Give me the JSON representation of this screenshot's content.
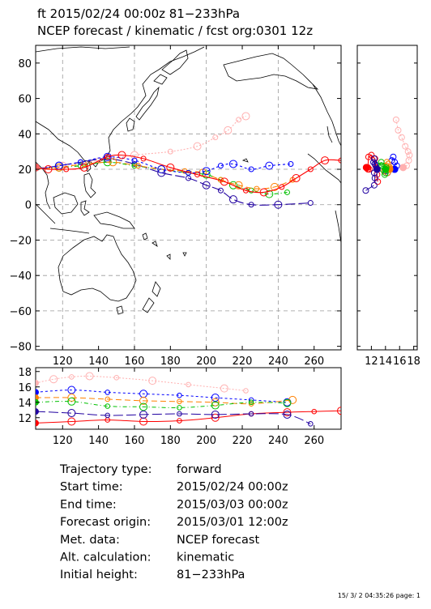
{
  "title": {
    "line1": "ft 2015/02/24 00:00z  81−233hPa",
    "line2": "NCEP forecast / kinematic / fcst org:0301 12z"
  },
  "colors": {
    "t1": "#ff0000",
    "t2": "#0000ff",
    "t3": "#ff8000",
    "t4": "#00c000",
    "t5": "#2000a0",
    "t6": "#ffb0b0"
  },
  "chart_data": [
    {
      "type": "line",
      "name": "trajectory-map",
      "xlim": [
        105,
        275
      ],
      "ylim": [
        -82,
        90
      ],
      "xticks": [
        120,
        140,
        160,
        180,
        200,
        220,
        240,
        260
      ],
      "yticks": [
        80,
        60,
        40,
        20,
        0,
        -20,
        -40,
        -60,
        -80
      ],
      "xtick_labels": [
        "120",
        "140",
        "160",
        "180",
        "200",
        "220",
        "240",
        "260"
      ],
      "ytick_labels": [
        "80",
        "60",
        "40",
        "20",
        "0",
        "−20",
        "−40",
        "−60",
        "−80"
      ],
      "gridlines": [
        0,
        20,
        40,
        -20,
        -40,
        -60,
        120,
        160,
        200,
        240
      ],
      "coastlines": true,
      "series": [
        {
          "id": "t1",
          "color": "#ff0000",
          "dash": "none",
          "x": [
            105,
            112,
            122,
            132,
            145,
            153,
            165,
            180,
            195,
            210,
            222,
            232,
            242,
            250,
            258,
            266,
            275
          ],
          "y": [
            21,
            20,
            20,
            21,
            27,
            28,
            26,
            21,
            17,
            13,
            8,
            7,
            10,
            15,
            20,
            25,
            25
          ]
        },
        {
          "id": "t2",
          "color": "#0000ff",
          "dash": "3,3",
          "x": [
            105,
            118,
            130,
            145,
            160,
            175,
            190,
            200,
            208,
            215,
            225,
            235,
            247
          ],
          "y": [
            20,
            22,
            24,
            27,
            25,
            20,
            18,
            19,
            22,
            23,
            20,
            22,
            23
          ]
        },
        {
          "id": "t3",
          "color": "#ff8000",
          "dash": "7,4",
          "x": [
            105,
            118,
            132,
            148,
            162,
            175,
            188,
            198,
            208,
            218,
            228,
            238,
            248
          ],
          "y": [
            20,
            21,
            23,
            24,
            22,
            20,
            19,
            18,
            14,
            11,
            9,
            10,
            14
          ]
        },
        {
          "id": "t4",
          "color": "#00c000",
          "dash": "5,3,1,3",
          "x": [
            105,
            118,
            130,
            145,
            160,
            175,
            190,
            200,
            208,
            215,
            225,
            235,
            245
          ],
          "y": [
            20,
            21,
            22,
            24,
            22,
            20,
            18,
            17,
            14,
            11,
            8,
            6,
            7
          ]
        },
        {
          "id": "t5",
          "color": "#2000a0",
          "dash": "12,4",
          "x": [
            105,
            118,
            130,
            145,
            160,
            175,
            190,
            200,
            208,
            215,
            225,
            240,
            258
          ],
          "y": [
            20,
            22,
            24,
            26,
            23,
            18,
            15,
            11,
            8,
            3,
            0,
            0,
            1
          ]
        },
        {
          "id": "t6",
          "color": "#ffb0b0",
          "dash": "2,2",
          "x": [
            105,
            120,
            140,
            160,
            180,
            195,
            205,
            212,
            218,
            222
          ],
          "y": [
            21,
            22,
            25,
            28,
            30,
            33,
            38,
            42,
            48,
            50
          ]
        }
      ]
    },
    {
      "type": "line",
      "name": "height-panel",
      "xlim": [
        105,
        275
      ],
      "ylim": [
        10.5,
        18.5
      ],
      "xticks": [
        120,
        140,
        160,
        180,
        200,
        220,
        240,
        260
      ],
      "xtick_labels": [
        "120",
        "140",
        "160",
        "180",
        "200",
        "220",
        "240",
        "260"
      ],
      "yticks": [
        18,
        16,
        14,
        12
      ],
      "ytick_labels": [
        "18",
        "16",
        "14",
        "12"
      ],
      "series": [
        {
          "id": "t1",
          "x": [
            105,
            125,
            145,
            165,
            185,
            205,
            225,
            245,
            260,
            275
          ],
          "y": [
            11.3,
            11.5,
            11.7,
            11.5,
            11.6,
            12.0,
            12.5,
            12.7,
            12.8,
            12.9
          ]
        },
        {
          "id": "t2",
          "x": [
            105,
            125,
            145,
            165,
            185,
            205,
            225,
            245
          ],
          "y": [
            15.3,
            15.6,
            15.3,
            15.1,
            14.9,
            14.6,
            14.3,
            14.0
          ]
        },
        {
          "id": "t3",
          "x": [
            105,
            125,
            145,
            165,
            185,
            205,
            225,
            248
          ],
          "y": [
            14.6,
            14.6,
            14.4,
            14.2,
            14.1,
            14.0,
            13.8,
            14.3
          ]
        },
        {
          "id": "t4",
          "x": [
            105,
            125,
            145,
            165,
            185,
            205,
            225,
            245
          ],
          "y": [
            14.0,
            14.1,
            13.5,
            13.4,
            13.3,
            13.6,
            14.0,
            13.9
          ]
        },
        {
          "id": "t5",
          "x": [
            105,
            125,
            145,
            165,
            185,
            205,
            225,
            245,
            258
          ],
          "y": [
            12.8,
            12.6,
            12.3,
            12.4,
            12.5,
            12.4,
            12.5,
            12.4,
            11.2
          ]
        },
        {
          "id": "t6",
          "x": [
            105,
            115,
            125,
            135,
            150,
            170,
            190,
            210,
            222
          ],
          "y": [
            16.5,
            17.0,
            17.3,
            17.4,
            17.2,
            16.8,
            16.3,
            15.8,
            15.5
          ]
        }
      ]
    },
    {
      "type": "scatter",
      "name": "right-panel",
      "xlim": [
        10,
        18.5
      ],
      "ylim": [
        -82,
        90
      ],
      "xticks": [
        12,
        14,
        16,
        18
      ],
      "xtick_labels": [
        "12",
        "14",
        "16",
        "18"
      ]
    }
  ],
  "info": {
    "rows": [
      {
        "label": "Trajectory type:",
        "value": "forward"
      },
      {
        "label": "Start time:",
        "value": "2015/02/24 00:00z"
      },
      {
        "label": "End time:",
        "value": "2015/03/03 00:00z"
      },
      {
        "label": "Forecast origin:",
        "value": "2015/03/01 12:00z"
      },
      {
        "label": "Met. data:",
        "value": "NCEP forecast"
      },
      {
        "label": "Alt. calculation:",
        "value": "kinematic"
      },
      {
        "label": "Initial height:",
        "value": "  81−233hPa"
      }
    ]
  },
  "footer": "15/ 3/ 2 04:35:26 page: 1"
}
